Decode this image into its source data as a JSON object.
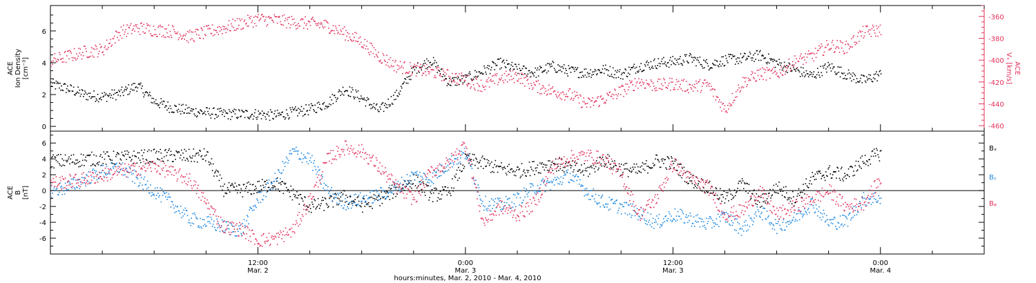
{
  "colors": {
    "black": "#000000",
    "pink": "#e0305a",
    "blue": "#1a86e0"
  },
  "chart_data": [
    {
      "type": "scatter",
      "panel": "top",
      "ylabel_lines": [
        "ACE",
        "Ion Density",
        "[cm⁻³]"
      ],
      "ylim": [
        -0.3,
        7.6
      ],
      "yticks": [
        0,
        2,
        4,
        6
      ],
      "y2label_lines": [
        "ACE",
        "Vₓ [km/s]"
      ],
      "y2lim": [
        -465,
        -350
      ],
      "y2ticks": [
        -460,
        -440,
        -420,
        -400,
        -380,
        -360
      ],
      "series": [
        {
          "name": "",
          "axis": "left",
          "color": "#000000",
          "x": [
            0,
            1,
            2,
            3,
            4,
            5,
            6,
            7,
            8,
            9,
            10,
            11,
            12,
            13,
            14,
            15,
            16,
            17,
            18,
            19,
            20,
            21,
            22,
            23,
            24,
            25,
            26,
            27,
            28,
            29,
            30,
            31,
            32,
            33,
            34,
            35,
            36,
            37,
            38,
            39,
            40,
            41,
            42,
            43,
            44,
            45,
            46,
            47,
            48
          ],
          "values": [
            2.7,
            2.4,
            2.0,
            1.9,
            2.1,
            2.6,
            1.6,
            1.2,
            1.0,
            0.9,
            0.8,
            0.8,
            0.8,
            0.7,
            0.9,
            1.1,
            1.5,
            2.4,
            1.8,
            1.0,
            2.0,
            3.6,
            4.2,
            2.8,
            3.0,
            3.5,
            4.0,
            3.6,
            3.4,
            3.8,
            3.5,
            3.4,
            3.6,
            3.3,
            3.8,
            4.0,
            4.1,
            4.3,
            3.9,
            4.2,
            4.3,
            4.5,
            4.0,
            3.6,
            3.2,
            3.8,
            3.3,
            2.9,
            3.3
          ]
        },
        {
          "name": "",
          "axis": "right",
          "color": "#e0305a",
          "x": [
            0,
            1,
            2,
            3,
            4,
            5,
            6,
            7,
            8,
            9,
            10,
            11,
            12,
            13,
            14,
            15,
            16,
            17,
            18,
            19,
            20,
            21,
            22,
            23,
            24,
            25,
            26,
            27,
            28,
            29,
            30,
            31,
            32,
            33,
            34,
            35,
            36,
            37,
            38,
            39,
            40,
            41,
            42,
            43,
            44,
            45,
            46,
            47,
            48
          ],
          "values": [
            -400,
            -396,
            -392,
            -390,
            -374,
            -370,
            -372,
            -373,
            -378,
            -374,
            -370,
            -366,
            -362,
            -363,
            -365,
            -366,
            -368,
            -375,
            -383,
            -396,
            -405,
            -408,
            -410,
            -414,
            -418,
            -423,
            -416,
            -414,
            -423,
            -428,
            -431,
            -440,
            -435,
            -428,
            -419,
            -423,
            -421,
            -424,
            -422,
            -445,
            -420,
            -412,
            -412,
            -401,
            -396,
            -386,
            -388,
            -374,
            -372
          ]
        }
      ]
    },
    {
      "type": "scatter",
      "panel": "bottom",
      "ylabel_lines": [
        "ACE",
        "B",
        "[nT]"
      ],
      "ylim": [
        -8,
        7.5
      ],
      "yticks": [
        -6,
        -4,
        -2,
        0,
        2,
        4,
        6
      ],
      "zero_line": true,
      "legend": [
        "Bₓ",
        "Bᵧ",
        "Bᵩ"
      ],
      "series": [
        {
          "name": "Bₓ",
          "color": "#000000",
          "x": [
            0,
            1,
            2,
            3,
            4,
            5,
            6,
            7,
            8,
            9,
            10,
            11,
            12,
            13,
            14,
            15,
            16,
            17,
            18,
            19,
            20,
            21,
            22,
            23,
            24,
            25,
            26,
            27,
            28,
            29,
            30,
            31,
            32,
            33,
            34,
            35,
            36,
            37,
            38,
            39,
            40,
            41,
            42,
            43,
            44,
            45,
            46,
            47,
            48
          ],
          "values": [
            3.8,
            3.8,
            4.0,
            4.1,
            4.2,
            4.3,
            4.4,
            4.5,
            4.4,
            4.5,
            0.2,
            0.1,
            0.5,
            1.0,
            -0.3,
            -2.0,
            -1.5,
            -0.7,
            -1.8,
            -1.0,
            0.2,
            1.4,
            -0.5,
            -0.2,
            4.0,
            3.5,
            2.8,
            2.5,
            3.0,
            3.5,
            3.0,
            2.5,
            4.0,
            2.8,
            2.5,
            3.8,
            3.5,
            1.4,
            0.5,
            -1.0,
            0.9,
            -1.5,
            0.5,
            -1.0,
            1.5,
            2.4,
            2.0,
            3.8,
            4.8
          ]
        },
        {
          "name": "Bᵧ",
          "color": "#1a86e0",
          "x": [
            0,
            1,
            2,
            3,
            4,
            5,
            6,
            7,
            8,
            9,
            10,
            11,
            12,
            13,
            14,
            15,
            16,
            17,
            18,
            19,
            20,
            21,
            22,
            23,
            24,
            25,
            26,
            27,
            28,
            29,
            30,
            31,
            32,
            33,
            34,
            35,
            36,
            37,
            38,
            39,
            40,
            41,
            42,
            43,
            44,
            45,
            46,
            47,
            48
          ],
          "values": [
            0.0,
            0.5,
            1.5,
            2.5,
            3.0,
            1.5,
            0.0,
            -1.5,
            -3.5,
            -4.0,
            -4.5,
            -5.0,
            -1.0,
            1.5,
            5.0,
            4.0,
            0.0,
            -1.5,
            -1.0,
            -0.5,
            0.5,
            2.0,
            1.5,
            3.5,
            4.8,
            -1.5,
            -1.8,
            -1.0,
            0.5,
            1.0,
            2.0,
            0.0,
            -1.5,
            -2.0,
            -2.8,
            -4.0,
            -3.0,
            -3.5,
            -4.2,
            -3.2,
            -4.8,
            -2.5,
            -4.5,
            -3.5,
            -1.5,
            -4.0,
            -3.8,
            -1.0,
            -0.8
          ]
        },
        {
          "name": "Bᵩ",
          "color": "#e0305a",
          "x": [
            0,
            1,
            2,
            3,
            4,
            5,
            6,
            7,
            8,
            9,
            10,
            11,
            12,
            13,
            14,
            15,
            16,
            17,
            18,
            19,
            20,
            21,
            22,
            23,
            24,
            25,
            26,
            27,
            28,
            29,
            30,
            31,
            32,
            33,
            34,
            35,
            36,
            37,
            38,
            39,
            40,
            41,
            42,
            43,
            44,
            45,
            46,
            47,
            48
          ],
          "values": [
            1.0,
            1.2,
            1.5,
            2.0,
            2.5,
            2.8,
            3.2,
            2.3,
            1.5,
            -1.5,
            -4.5,
            -4.8,
            -6.2,
            -6.0,
            -5.0,
            -1.0,
            4.0,
            5.5,
            5.0,
            3.0,
            0.5,
            -1.0,
            2.5,
            3.5,
            6.0,
            -4.0,
            -2.0,
            -3.0,
            -1.5,
            3.0,
            4.2,
            4.5,
            4.0,
            2.0,
            -3.0,
            -1.0,
            3.5,
            1.5,
            0.5,
            -3.0,
            -2.5,
            0.0,
            -3.0,
            -2.0,
            -1.0,
            0.0,
            -2.0,
            -1.5,
            1.5
          ]
        }
      ]
    }
  ],
  "x_axis": {
    "ticks": [
      {
        "line1": "12:00",
        "line2": "Mar. 2",
        "pos_h": 12
      },
      {
        "line1": "0:00",
        "line2": "Mar. 3",
        "pos_h": 24
      },
      {
        "line1": "12:00",
        "line2": "Mar. 3",
        "pos_h": 36
      },
      {
        "line1": "0:00",
        "line2": "Mar. 4",
        "pos_h": 48
      }
    ],
    "xlabel": "hours:minutes, Mar. 2, 2010 - Mar. 4, 2010",
    "range_h": [
      0,
      54
    ]
  }
}
